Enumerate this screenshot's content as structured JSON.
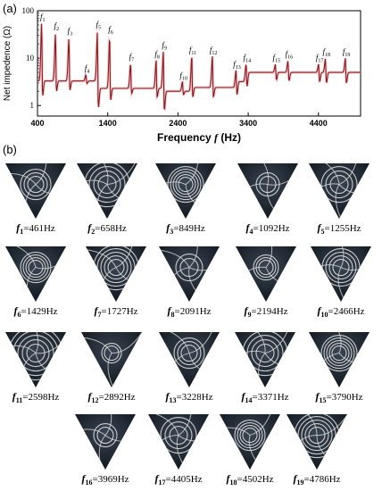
{
  "panel_a_label": "(a)",
  "panel_b_label": "(b)",
  "chart_data": {
    "type": "line",
    "xlabel": "Frequency",
    "xlabel_symbol": "f",
    "xlabel_unit": "(Hz)",
    "ylabel": "Net impedence (Ω)",
    "x_ticks": [
      "400",
      "1400",
      "2400",
      "3400",
      "4400"
    ],
    "y_ticks": [
      "1",
      "10",
      "100"
    ],
    "xlim": [
      400,
      5000
    ],
    "ylim": [
      0.6,
      100
    ],
    "yscale": "log",
    "series_color": "#8b1a1a",
    "baseline_segments": [
      {
        "x_from": 400,
        "x_to": 1255,
        "y": 3.3
      },
      {
        "x_from": 1255,
        "x_to": 2194,
        "y": 2.3
      },
      {
        "x_from": 2194,
        "x_to": 2598,
        "y": 2.0
      },
      {
        "x_from": 2598,
        "x_to": 3228,
        "y": 2.4
      },
      {
        "x_from": 3228,
        "x_to": 3371,
        "y": 3.2
      },
      {
        "x_from": 3371,
        "x_to": 5000,
        "y": 5.0
      }
    ],
    "peaks": [
      {
        "label": "f",
        "sub": "1",
        "x": 461,
        "peak": 60,
        "dip": 1.6
      },
      {
        "label": "f",
        "sub": "2",
        "x": 658,
        "peak": 35,
        "dip": 2.0
      },
      {
        "label": "f",
        "sub": "3",
        "x": 849,
        "peak": 28,
        "dip": 2.1
      },
      {
        "label": "f",
        "sub": "4",
        "x": 1092,
        "peak": 4.5,
        "dip": 2.9
      },
      {
        "label": "f",
        "sub": "5",
        "x": 1255,
        "peak": 38,
        "dip": 0.9
      },
      {
        "label": "f",
        "sub": "6",
        "x": 1429,
        "peak": 30,
        "dip": 1.3
      },
      {
        "label": "f",
        "sub": "7",
        "x": 1727,
        "peak": 8,
        "dip": 1.8
      },
      {
        "label": "f",
        "sub": "8",
        "x": 2091,
        "peak": 9,
        "dip": 1.5
      },
      {
        "label": "f",
        "sub": "9",
        "x": 2194,
        "peak": 14,
        "dip": 0.8
      },
      {
        "label": "f",
        "sub": "10",
        "x": 2466,
        "peak": 3.2,
        "dip": 1.7
      },
      {
        "label": "f",
        "sub": "11",
        "x": 2598,
        "peak": 11,
        "dip": 1.5
      },
      {
        "label": "f",
        "sub": "12",
        "x": 2892,
        "peak": 11,
        "dip": 1.5
      },
      {
        "label": "f",
        "sub": "13",
        "x": 3228,
        "peak": 5.5,
        "dip": 1.7
      },
      {
        "label": "f",
        "sub": "14",
        "x": 3371,
        "peak": 7.5,
        "dip": 2.5
      },
      {
        "label": "f",
        "sub": "15",
        "x": 3790,
        "peak": 7.5,
        "dip": 3.5
      },
      {
        "label": "f",
        "sub": "16",
        "x": 3969,
        "peak": 9,
        "dip": 3.3
      },
      {
        "label": "f",
        "sub": "17",
        "x": 4405,
        "peak": 7.5,
        "dip": 3.2
      },
      {
        "label": "f",
        "sub": "18",
        "x": 4502,
        "peak": 10,
        "dip": 3.0
      },
      {
        "label": "f",
        "sub": "19",
        "x": 4786,
        "peak": 10,
        "dip": 3.0
      }
    ]
  },
  "modes": [
    {
      "sym": "f",
      "sub": "1",
      "eq": "=461Hz"
    },
    {
      "sym": "f",
      "sub": "2",
      "eq": "=658Hz"
    },
    {
      "sym": "f",
      "sub": "3",
      "eq": "=849Hz"
    },
    {
      "sym": "f",
      "sub": "4",
      "eq": "=1092Hz"
    },
    {
      "sym": "f",
      "sub": "5",
      "eq": "=1255Hz"
    },
    {
      "sym": "f",
      "sub": "6",
      "eq": "=1429Hz"
    },
    {
      "sym": "f",
      "sub": "7",
      "eq": "=1727Hz"
    },
    {
      "sym": "f",
      "sub": "8",
      "eq": "=2091Hz"
    },
    {
      "sym": "f",
      "sub": "9",
      "eq": "=2194Hz"
    },
    {
      "sym": "f",
      "sub": "10",
      "eq": "=2466Hz"
    },
    {
      "sym": "f",
      "sub": "11",
      "eq": "=2598Hz"
    },
    {
      "sym": "f",
      "sub": "12",
      "eq": "=2892Hz"
    },
    {
      "sym": "f",
      "sub": "13",
      "eq": "=3228Hz"
    },
    {
      "sym": "f",
      "sub": "14",
      "eq": "=3371Hz"
    },
    {
      "sym": "f",
      "sub": "15",
      "eq": "=3790Hz"
    },
    {
      "sym": "f",
      "sub": "16",
      "eq": "=3969Hz"
    },
    {
      "sym": "f",
      "sub": "17",
      "eq": "=4405Hz"
    },
    {
      "sym": "f",
      "sub": "18",
      "eq": "=4502Hz"
    },
    {
      "sym": "f",
      "sub": "19",
      "eq": "=4786Hz"
    }
  ]
}
